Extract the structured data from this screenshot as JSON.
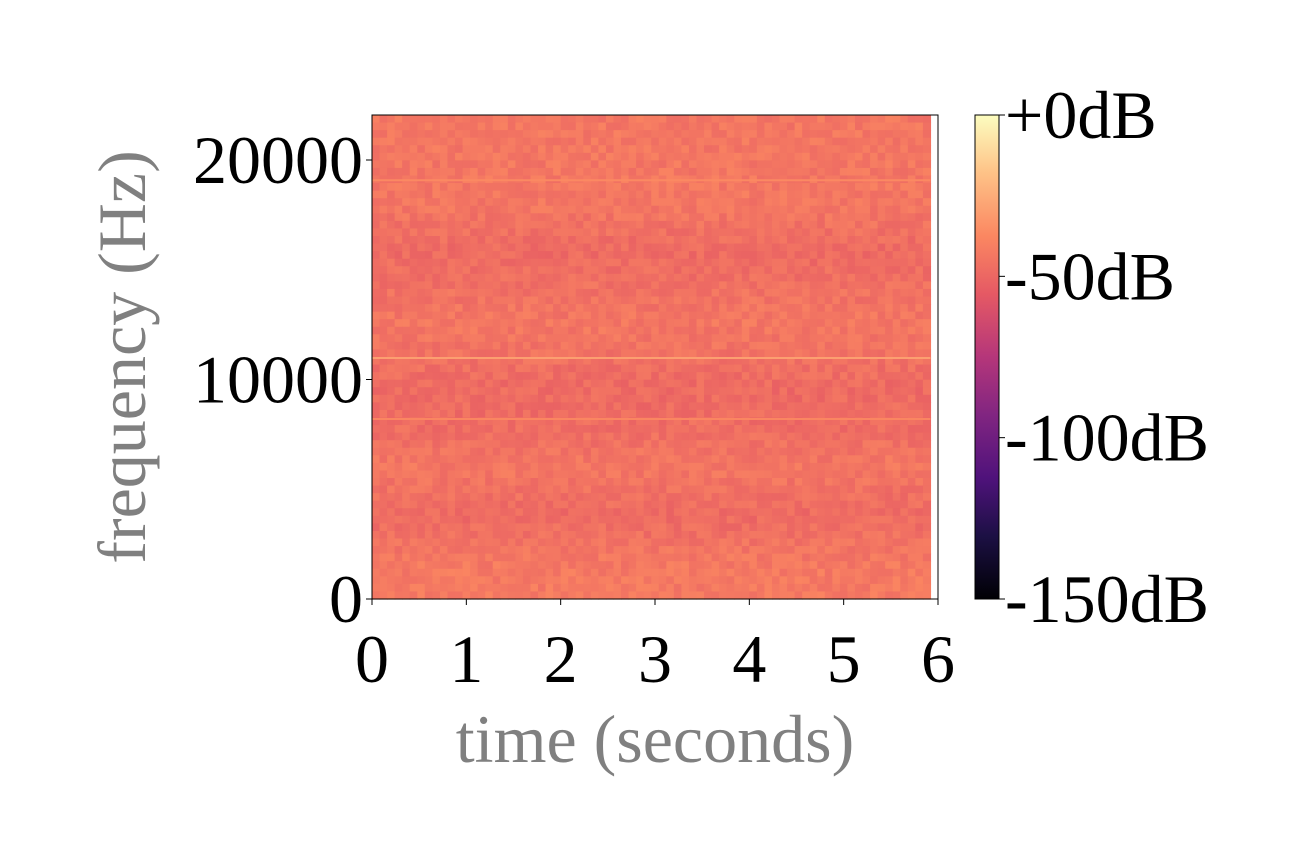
{
  "chart_data": {
    "type": "heatmap",
    "title": "",
    "xlabel": "time (seconds)",
    "ylabel": "frequency (Hz)",
    "xlim": [
      0,
      6
    ],
    "ylim": [
      0,
      22050
    ],
    "data_extent_x": [
      0,
      5.92
    ],
    "x_ticks": [
      0,
      1,
      2,
      3,
      4,
      5,
      6
    ],
    "x_tick_labels": [
      "0",
      "1",
      "2",
      "3",
      "4",
      "5",
      "6"
    ],
    "y_ticks": [
      0,
      10000,
      20000
    ],
    "y_tick_labels": [
      "0",
      "10000",
      "20000"
    ],
    "colorbar": {
      "colormap": "magma",
      "range_db": [
        -150,
        0
      ],
      "ticks": [
        0,
        -50,
        -100,
        -150
      ],
      "tick_labels": [
        "+0dB",
        "-50dB",
        "-100dB",
        "-150dB"
      ]
    },
    "dominant_level_db": -45,
    "band_texture": [
      {
        "freq_hz": 1500,
        "level_db": -43
      },
      {
        "freq_hz": 3800,
        "level_db": -49
      },
      {
        "freq_hz": 6000,
        "level_db": -44
      },
      {
        "freq_hz": 7800,
        "level_db": -48
      },
      {
        "freq_hz": 9500,
        "level_db": -49
      },
      {
        "freq_hz": 12500,
        "level_db": -44
      },
      {
        "freq_hz": 15800,
        "level_db": -49
      },
      {
        "freq_hz": 18000,
        "level_db": -44
      }
    ],
    "tonal_lines": [
      {
        "freq_hz": 10980,
        "level_db": -30
      },
      {
        "freq_hz": 19080,
        "level_db": -37
      },
      {
        "freq_hz": 8200,
        "level_db": -38
      }
    ],
    "grid": false,
    "legend": "none"
  }
}
